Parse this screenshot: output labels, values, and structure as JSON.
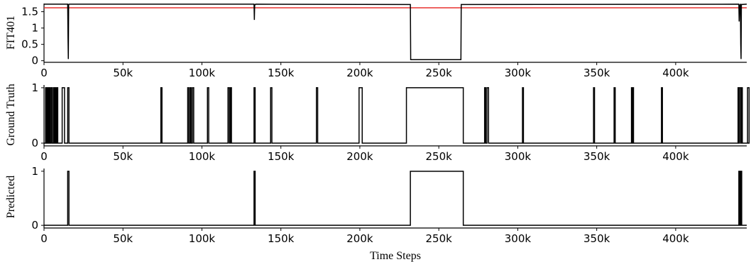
{
  "chart_data": [
    {
      "type": "line",
      "ylabel": "FIT401",
      "xlabel": "",
      "xlim": [
        0,
        445000
      ],
      "ylim": [
        -0.05,
        1.75
      ],
      "x_ticks": [
        0,
        50000,
        100000,
        150000,
        200000,
        250000,
        300000,
        350000,
        400000
      ],
      "x_tick_labels": [
        "0",
        "50k",
        "100k",
        "150k",
        "200k",
        "250k",
        "300k",
        "350k",
        "400k"
      ],
      "y_ticks": [
        0,
        0.5,
        1,
        1.5
      ],
      "y_tick_labels": [
        "0",
        "0.5",
        "1",
        "1.5"
      ],
      "threshold": {
        "value": 1.62,
        "color": "#e8312f"
      },
      "series": [
        {
          "color": "#000000",
          "points": [
            [
              0,
              1.73
            ],
            [
              15000,
              1.73
            ],
            [
              15200,
              0.7
            ],
            [
              15400,
              0.05
            ],
            [
              15600,
              1.72
            ],
            [
              16000,
              1.73
            ],
            [
              133000,
              1.73
            ],
            [
              133200,
              1.25
            ],
            [
              133400,
              1.7
            ],
            [
              134000,
              1.73
            ],
            [
              232000,
              1.72
            ],
            [
              232200,
              0.03
            ],
            [
              264000,
              0.03
            ],
            [
              264200,
              1.72
            ],
            [
              440000,
              1.73
            ],
            [
              440200,
              1.2
            ],
            [
              440500,
              1.7
            ],
            [
              441000,
              1.72
            ],
            [
              441200,
              0.5
            ],
            [
              441400,
              0.05
            ],
            [
              441600,
              1.72
            ],
            [
              445000,
              1.73
            ]
          ]
        }
      ]
    },
    {
      "type": "line",
      "ylabel": "Ground Truth",
      "xlabel": "",
      "xlim": [
        0,
        445000
      ],
      "ylim": [
        -0.05,
        1.05
      ],
      "x_ticks": [
        0,
        50000,
        100000,
        150000,
        200000,
        250000,
        300000,
        350000,
        400000
      ],
      "x_tick_labels": [
        "0",
        "50k",
        "100k",
        "150k",
        "200k",
        "250k",
        "300k",
        "350k",
        "400k"
      ],
      "y_ticks": [
        0,
        1
      ],
      "y_tick_labels": [
        "0",
        "1"
      ],
      "series": [
        {
          "color": "#000000",
          "intervals": [
            [
              1000,
              1600
            ],
            [
              2200,
              2800
            ],
            [
              3200,
              3800
            ],
            [
              4500,
              5200
            ],
            [
              6000,
              6500
            ],
            [
              7000,
              7600
            ],
            [
              8200,
              8700
            ],
            [
              11500,
              13000
            ],
            [
              15000,
              15800
            ],
            [
              74000,
              74700
            ],
            [
              91000,
              91700
            ],
            [
              92500,
              93200
            ],
            [
              94000,
              94800
            ],
            [
              103500,
              104300
            ],
            [
              116500,
              117300
            ],
            [
              118000,
              118700
            ],
            [
              133000,
              133700
            ],
            [
              143500,
              144300
            ],
            [
              172500,
              173300
            ],
            [
              199500,
              201500
            ],
            [
              229500,
              265500
            ],
            [
              279000,
              279700
            ],
            [
              280500,
              281500
            ],
            [
              303000,
              303600
            ],
            [
              348000,
              348600
            ],
            [
              361000,
              361700
            ],
            [
              372000,
              372500
            ],
            [
              372800,
              373300
            ],
            [
              391000,
              391600
            ],
            [
              439500,
              440000
            ],
            [
              440400,
              441200
            ],
            [
              441500,
              442200
            ],
            [
              445500,
              446500
            ]
          ]
        }
      ]
    },
    {
      "type": "line",
      "ylabel": "Predicted",
      "xlabel": "Time Steps",
      "xlim": [
        0,
        445000
      ],
      "ylim": [
        -0.05,
        1.05
      ],
      "x_ticks": [
        0,
        50000,
        100000,
        150000,
        200000,
        250000,
        300000,
        350000,
        400000
      ],
      "x_tick_labels": [
        "0",
        "50k",
        "100k",
        "150k",
        "200k",
        "250k",
        "300k",
        "350k",
        "400k"
      ],
      "y_ticks": [
        0,
        1
      ],
      "y_tick_labels": [
        "0",
        "1"
      ],
      "series": [
        {
          "color": "#000000",
          "intervals": [
            [
              15000,
              15800
            ],
            [
              133000,
              133700
            ],
            [
              232000,
              265500
            ],
            [
              440000,
              440600
            ],
            [
              441200,
              441800
            ]
          ]
        }
      ]
    }
  ]
}
